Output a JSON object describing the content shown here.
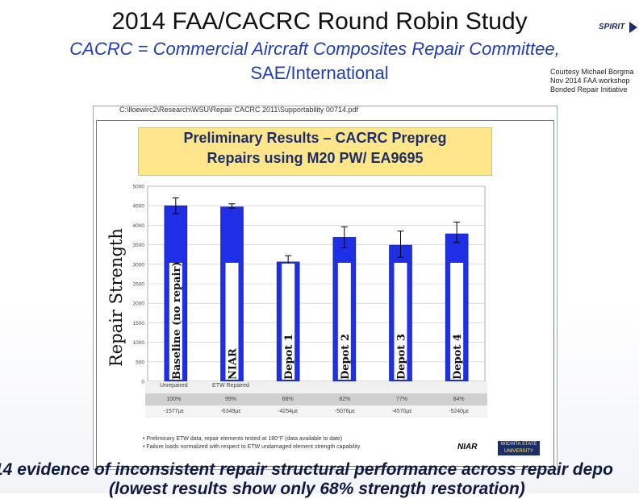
{
  "slide": {
    "title": "2014 FAA/CACRC Round Robin Study",
    "subtitle_line1": "CACRC = Commercial Aircraft Composites Repair Committee,",
    "subtitle_line2": "SAE/International",
    "courtesy": [
      "Courtesy Michael Borgma",
      "Nov 2014 FAA workshop",
      "Bonded Repair Initiative"
    ],
    "logo_text": "SPIRIT",
    "file_path": "C:\\lloewirc2\\Research\\WSU\\Repair CACRC 2011\\Supportability 00714.pdf",
    "bottom_line1": "14 evidence of inconsistent repair structural performance across repair depo",
    "bottom_line2": "(lowest results show only 68% strength restoration)",
    "outer_ylabel": "Repair Strength"
  },
  "doc": {
    "banner_line1": "Preliminary Results – CACRC Prepreg",
    "banner_line2": "Repairs using M20 PW/ EA9695",
    "row_labels": [
      "Unrepaired",
      "ETW Repaired",
      "",
      "",
      "",
      ""
    ],
    "row_percent": [
      "100%",
      "99%",
      "68%",
      "82%",
      "77%",
      "84%"
    ],
    "row_strain": [
      "-1577με",
      "-6349με",
      "-4254με",
      "-5076με",
      "-4570με",
      "-5240με"
    ],
    "notes": [
      "•  Preliminary ETW data, repair elements tested at 180°F (data available to date)",
      "•  Failure loads normalized with respect to ETW undamaged element strength capability"
    ],
    "niar": "NIAR",
    "wsu": "WICHITA STATE UNIVERSITY"
  },
  "chart_data": {
    "type": "bar",
    "categories": [
      "Baseline (no repair)",
      "NIAR",
      "Depot 1",
      "Depot 2",
      "Depot 3",
      "Depot 4"
    ],
    "values": [
      4500,
      4470,
      3060,
      3690,
      3490,
      3780
    ],
    "error_high": [
      4700,
      4550,
      3220,
      3960,
      3850,
      4080
    ],
    "error_low": [
      4300,
      4440,
      2900,
      3420,
      3180,
      3560
    ],
    "ylim": [
      0,
      5000
    ],
    "yticks": [
      0,
      500,
      1000,
      1500,
      2000,
      2500,
      3000,
      3500,
      4000,
      4500,
      5000
    ],
    "ylabel": "Repair Strength",
    "grid": true,
    "bar_color": "#1f2fe6"
  }
}
